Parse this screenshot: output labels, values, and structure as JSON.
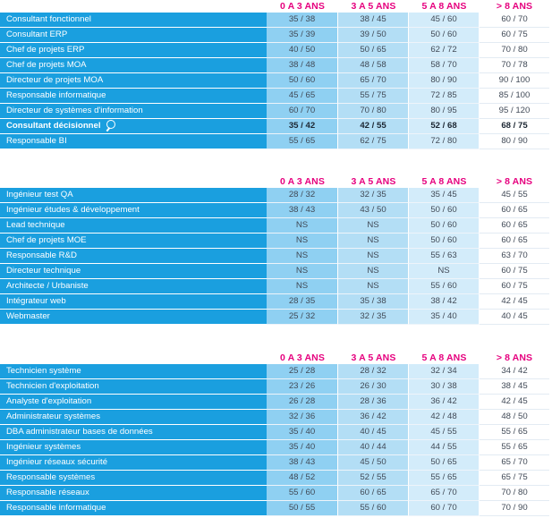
{
  "headers": [
    "0 A 3 ANS",
    "3 A 5 ANS",
    "5 A 8 ANS",
    "> 8 ANS"
  ],
  "tables": [
    {
      "rows": [
        {
          "label": "Consultant fonctionnel",
          "v": [
            "35 / 38",
            "38 / 45",
            "45 / 60",
            "60 / 70"
          ]
        },
        {
          "label": "Consultant ERP",
          "v": [
            "35 / 39",
            "39 / 50",
            "50 / 60",
            "60 / 75"
          ]
        },
        {
          "label": "Chef de projets ERP",
          "v": [
            "40 / 50",
            "50 / 65",
            "62 / 72",
            "70 / 80"
          ]
        },
        {
          "label": "Chef de projets MOA",
          "v": [
            "38 / 48",
            "48 / 58",
            "58 / 70",
            "70 / 78"
          ]
        },
        {
          "label": "Directeur de projets MOA",
          "v": [
            "50 / 60",
            "65 / 70",
            "80 / 90",
            "90 / 100"
          ]
        },
        {
          "label": "Responsable informatique",
          "v": [
            "45 / 65",
            "55 / 75",
            "72 / 85",
            "85 / 100"
          ]
        },
        {
          "label": "Directeur de systèmes d'information",
          "v": [
            "60 / 70",
            "70 / 80",
            "80 / 95",
            "95 / 120"
          ]
        },
        {
          "label": "Consultant décisionnel",
          "v": [
            "35 / 42",
            "42 / 55",
            "52 / 68",
            "68 / 75"
          ],
          "bold": true,
          "icon": "search-icon"
        },
        {
          "label": "Responsable BI",
          "v": [
            "55 / 65",
            "62 / 75",
            "72 / 80",
            "80 / 90"
          ]
        }
      ]
    },
    {
      "rows": [
        {
          "label": "Ingénieur test QA",
          "v": [
            "28 / 32",
            "32 / 35",
            "35 / 45",
            "45 / 55"
          ]
        },
        {
          "label": "Ingénieur études & développement",
          "v": [
            "38 / 43",
            "43 / 50",
            "50 / 60",
            "60 / 65"
          ]
        },
        {
          "label": "Lead technique",
          "v": [
            "NS",
            "NS",
            "50 / 60",
            "60 / 65"
          ]
        },
        {
          "label": "Chef de projets MOE",
          "v": [
            "NS",
            "NS",
            "50 / 60",
            "60 / 65"
          ]
        },
        {
          "label": "Responsable R&D",
          "v": [
            "NS",
            "NS",
            "55 / 63",
            "63 / 70"
          ]
        },
        {
          "label": "Directeur technique",
          "v": [
            "NS",
            "NS",
            "NS",
            "60 / 75"
          ]
        },
        {
          "label": "Architecte / Urbaniste",
          "v": [
            "NS",
            "NS",
            "55 / 60",
            "60 / 75"
          ]
        },
        {
          "label": "Intégrateur web",
          "v": [
            "28 / 35",
            "35 / 38",
            "38 / 42",
            "42 / 45"
          ]
        },
        {
          "label": "Webmaster",
          "v": [
            "25 / 32",
            "32 / 35",
            "35 / 40",
            "40 / 45"
          ]
        }
      ]
    },
    {
      "rows": [
        {
          "label": "Technicien système",
          "v": [
            "25 / 28",
            "28 / 32",
            "32 / 34",
            "34 / 42"
          ]
        },
        {
          "label": "Technicien d'exploitation",
          "v": [
            "23 / 26",
            "26 / 30",
            "30 / 38",
            "38 / 45"
          ]
        },
        {
          "label": "Analyste d'exploitation",
          "v": [
            "26 / 28",
            "28 / 36",
            "36 / 42",
            "42 / 45"
          ]
        },
        {
          "label": "Administrateur systèmes",
          "v": [
            "32 / 36",
            "36 / 42",
            "42 / 48",
            "48 / 50"
          ]
        },
        {
          "label": "DBA administrateur bases de données",
          "v": [
            "35 / 40",
            "40 / 45",
            "45 / 55",
            "55 / 65"
          ]
        },
        {
          "label": "Ingénieur systèmes",
          "v": [
            "35 / 40",
            "40 / 44",
            "44 / 55",
            "55 / 65"
          ]
        },
        {
          "label": "Ingénieur réseaux sécurité",
          "v": [
            "38 / 43",
            "45 / 50",
            "50 / 65",
            "65 / 70"
          ]
        },
        {
          "label": "Responsable systèmes",
          "v": [
            "48 / 52",
            "52 / 55",
            "55 / 65",
            "65 / 75"
          ]
        },
        {
          "label": "Responsable réseaux",
          "v": [
            "55 / 60",
            "60 / 65",
            "65 / 70",
            "70 / 80"
          ]
        },
        {
          "label": "Responsable informatique",
          "v": [
            "50 / 55",
            "55 / 60",
            "60 / 70",
            "70 / 90"
          ]
        }
      ]
    }
  ]
}
